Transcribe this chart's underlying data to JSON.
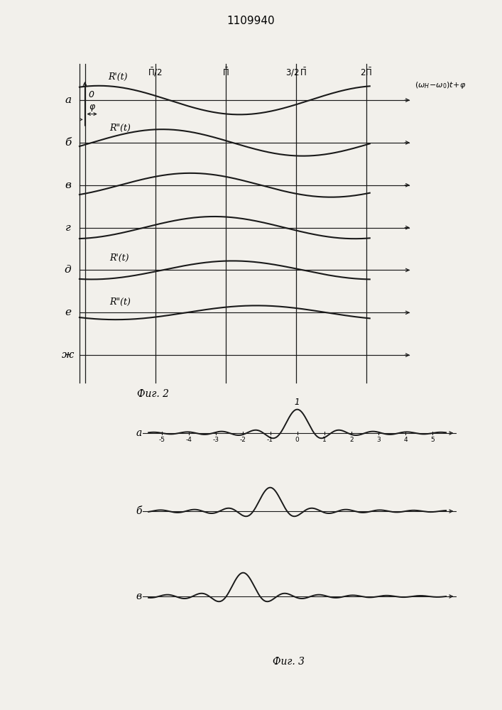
{
  "title": "1109940",
  "fig2_caption": "Фиг. 2",
  "fig3_caption": "Фиг. 3",
  "row_labels_fig2": [
    "а",
    "б",
    "в",
    "г",
    "д",
    "е",
    "ж"
  ],
  "row_labels_fig3": [
    "а",
    "б",
    "в"
  ],
  "curve_labels": {
    "1": "R\"(t)",
    "4": "R'(t)",
    "5": "R\"(t)"
  },
  "r_prime_axis": "R'(t)",
  "phi_label": "φ",
  "fig3_xticks": [
    -5,
    -4,
    -3,
    -2,
    -1,
    0,
    1,
    2,
    3,
    4,
    5
  ],
  "fig3_peak": "1",
  "bg_color": "#f2f0eb",
  "line_color": "#1a1a1a",
  "n_fig2_rows": 7,
  "phi_val": 0.32,
  "row_amplitudes": [
    0.78,
    0.72,
    0.65,
    0.6,
    0.5,
    0.38,
    0.0
  ],
  "row_phases_pi": [
    0.1,
    0.55,
    0.75,
    0.92,
    1.05,
    1.22,
    0.0
  ],
  "row_sep": 2.3
}
